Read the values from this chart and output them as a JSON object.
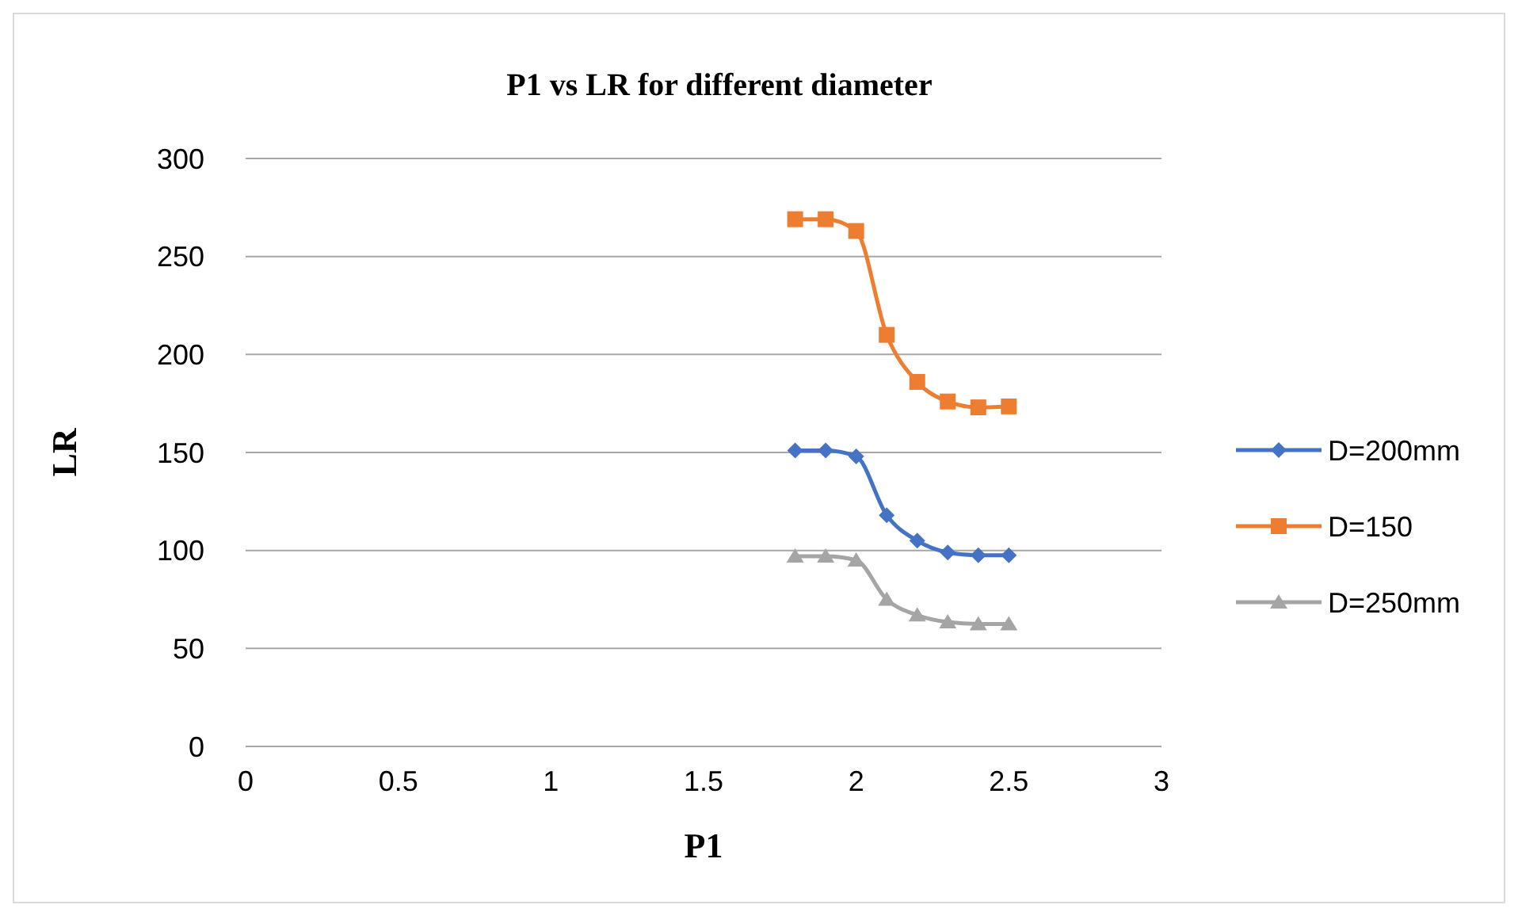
{
  "chart_data": {
    "type": "line",
    "title": "P1 vs LR for different diameter",
    "xlabel": "P1",
    "ylabel": "LR",
    "x": [
      1.8,
      1.9,
      2.0,
      2.1,
      2.2,
      2.3,
      2.4,
      2.5
    ],
    "series": [
      {
        "name": "D=200mm",
        "color": "#4472c4",
        "marker": "diamond",
        "values": [
          151,
          151,
          148,
          118,
          105,
          99,
          97.5,
          97.5
        ]
      },
      {
        "name": "D=150",
        "color": "#ed7d31",
        "marker": "square",
        "values": [
          269,
          269,
          263,
          210,
          186,
          176,
          173,
          173.5
        ]
      },
      {
        "name": "D=250mm",
        "color": "#a5a5a5",
        "marker": "triangle",
        "values": [
          97,
          97,
          95,
          75,
          67,
          63.5,
          62.5,
          62.5
        ]
      }
    ],
    "xlim": [
      0,
      3
    ],
    "xticks": [
      0,
      0.5,
      1,
      1.5,
      2,
      2.5,
      3
    ],
    "ylim": [
      0,
      300
    ],
    "yticks": [
      0,
      50,
      100,
      150,
      200,
      250,
      300
    ],
    "grid": "y",
    "legend": "right",
    "line_style": "solid"
  }
}
